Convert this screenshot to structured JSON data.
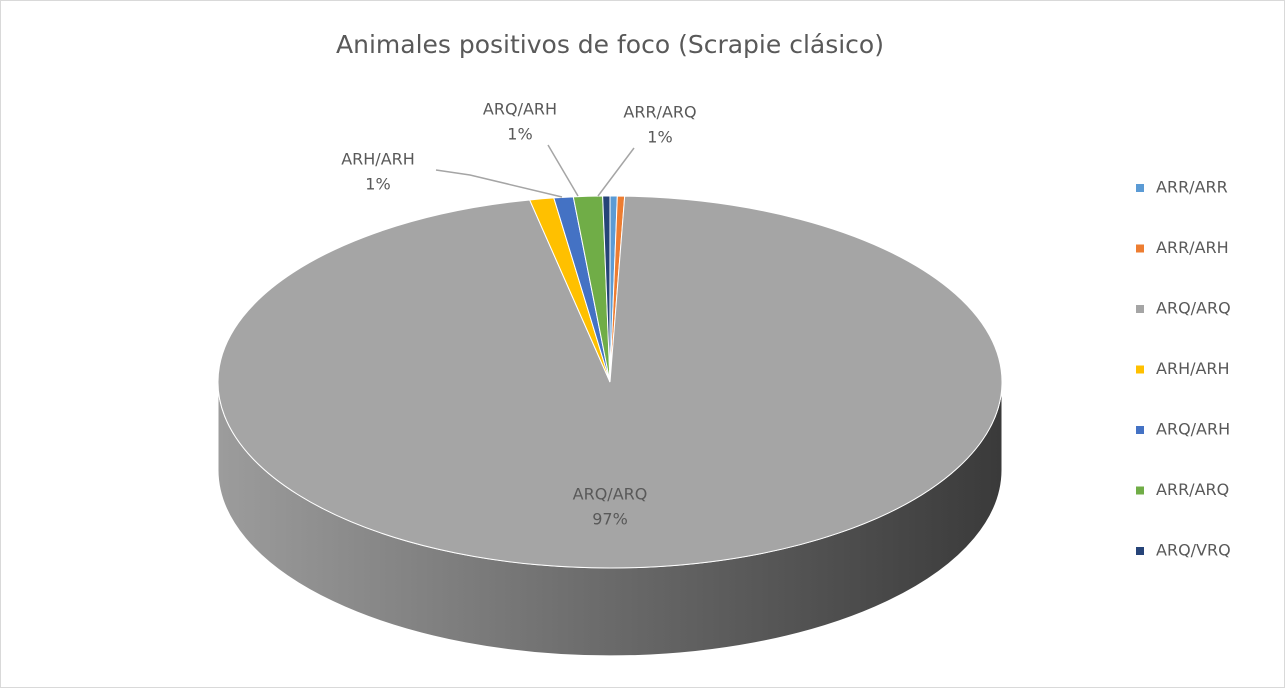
{
  "chart_data": {
    "type": "pie",
    "title": "Animales positivos de foco (Scrapie clásico)",
    "categories": [
      "ARR/ARR",
      "ARR/ARH",
      "ARQ/ARQ",
      "ARH/ARH",
      "ARQ/ARH",
      "ARR/ARQ",
      "ARQ/VRQ"
    ],
    "values": [
      0.3,
      0.3,
      96.6,
      1,
      0.8,
      1.2,
      0.3
    ],
    "value_labels": [
      null,
      null,
      "97%",
      "1%",
      "1%",
      "1%",
      null
    ],
    "colors": [
      "#5b9bd5",
      "#ed7d31",
      "#a5a5a5",
      "#ffc000",
      "#4472c4",
      "#70ad47",
      "#264478"
    ],
    "legend": "right"
  }
}
